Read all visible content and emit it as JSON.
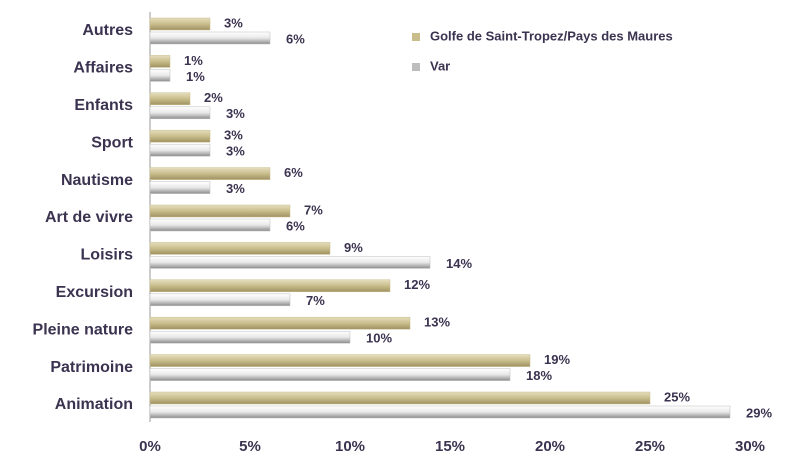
{
  "chart_data": {
    "type": "hbar",
    "categories": [
      "Autres",
      "Affaires",
      "Enfants",
      "Sport",
      "Nautisme",
      "Art de vivre",
      "Loisirs",
      "Excursion",
      "Pleine nature",
      "Patrimoine",
      "Animation"
    ],
    "series": [
      {
        "name": "Golfe de Saint-Tropez/Pays des Maures",
        "color": "#c9bd8c",
        "values": [
          3,
          1,
          2,
          3,
          6,
          7,
          9,
          12,
          13,
          19,
          25
        ],
        "value_labels": [
          "3%",
          "1%",
          "2%",
          "3%",
          "6%",
          "7%",
          "9%",
          "12%",
          "13%",
          "19%",
          "25%"
        ]
      },
      {
        "name": "Var",
        "color": "#bdbdbd",
        "values": [
          6,
          1,
          3,
          3,
          3,
          6,
          14,
          7,
          10,
          18,
          29
        ],
        "value_labels": [
          "6%",
          "1%",
          "3%",
          "3%",
          "3%",
          "6%",
          "14%",
          "7%",
          "10%",
          "18%",
          "29%"
        ]
      }
    ],
    "xlim": [
      0,
      30
    ],
    "xticks": [
      {
        "value": 0,
        "label": "0%"
      },
      {
        "value": 5,
        "label": "5%"
      },
      {
        "value": 10,
        "label": "10%"
      },
      {
        "value": 15,
        "label": "15%"
      },
      {
        "value": 20,
        "label": "20%"
      },
      {
        "value": 25,
        "label": "25%"
      },
      {
        "value": 30,
        "label": "30%"
      }
    ]
  }
}
